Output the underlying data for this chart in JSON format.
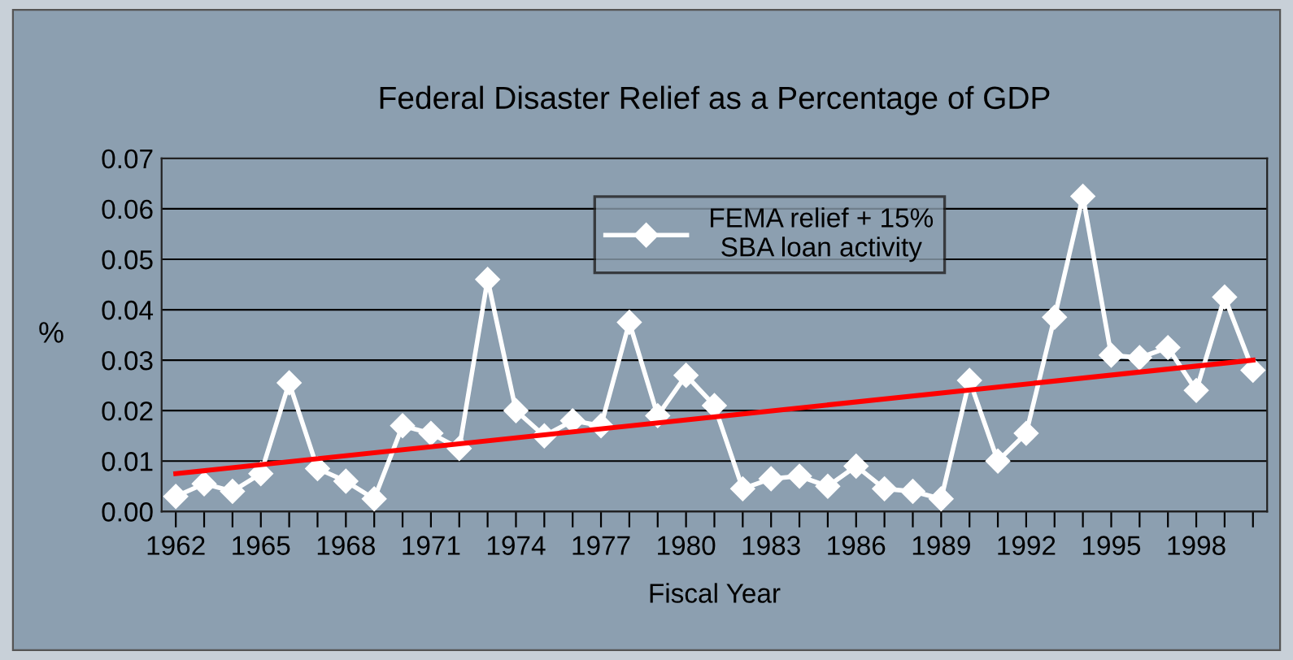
{
  "chart_data": {
    "type": "line",
    "title": "Federal Disaster Relief as a Percentage of GDP",
    "xlabel": "Fiscal Year",
    "ylabel": "%",
    "x": [
      1962,
      1963,
      1964,
      1965,
      1966,
      1967,
      1968,
      1969,
      1970,
      1971,
      1972,
      1973,
      1974,
      1975,
      1976,
      1977,
      1978,
      1979,
      1980,
      1981,
      1982,
      1983,
      1984,
      1985,
      1986,
      1987,
      1988,
      1989,
      1990,
      1991,
      1992,
      1993,
      1994,
      1995,
      1996,
      1997,
      1998,
      1999,
      2000
    ],
    "series": [
      {
        "name": "FEMA relief + 15%\nSBA loan activity",
        "color": "#ffffff",
        "marker": "diamond",
        "values": [
          0.003,
          0.0055,
          0.004,
          0.0075,
          0.0255,
          0.0085,
          0.006,
          0.0025,
          0.017,
          0.0155,
          0.0125,
          0.046,
          0.02,
          0.015,
          0.018,
          0.017,
          0.0375,
          0.019,
          0.027,
          0.021,
          0.0045,
          0.0065,
          0.007,
          0.005,
          0.009,
          0.0045,
          0.004,
          0.0025,
          0.026,
          0.01,
          0.0155,
          0.0385,
          0.0625,
          0.031,
          0.0305,
          0.0325,
          0.024,
          0.0425,
          0.028
        ]
      },
      {
        "type": "line",
        "color": "#ff0000",
        "marker": "none",
        "x": [
          1962,
          2000
        ],
        "values": [
          0.0075,
          0.03
        ]
      }
    ],
    "xlim": [
      1961.5,
      2000.5
    ],
    "xticks": [
      1962,
      {
        "value": 1963,
        "label": null
      },
      {
        "value": 1964,
        "label": null
      },
      1965,
      {
        "value": 1966,
        "label": null
      },
      {
        "value": 1967,
        "label": null
      },
      1968,
      {
        "value": 1969,
        "label": null
      },
      {
        "value": 1970,
        "label": null
      },
      1971,
      {
        "value": 1972,
        "label": null
      },
      {
        "value": 1973,
        "label": null
      },
      1974,
      {
        "value": 1975,
        "label": null
      },
      {
        "value": 1976,
        "label": null
      },
      1977,
      {
        "value": 1978,
        "label": null
      },
      {
        "value": 1979,
        "label": null
      },
      1980,
      {
        "value": 1981,
        "label": null
      },
      {
        "value": 1982,
        "label": null
      },
      1983,
      {
        "value": 1984,
        "label": null
      },
      {
        "value": 1985,
        "label": null
      },
      1986,
      {
        "value": 1987,
        "label": null
      },
      {
        "value": 1988,
        "label": null
      },
      1989,
      {
        "value": 1990,
        "label": null
      },
      {
        "value": 1991,
        "label": null
      },
      1992,
      {
        "value": 1993,
        "label": null
      },
      {
        "value": 1994,
        "label": null
      },
      1995,
      {
        "value": 1996,
        "label": null
      },
      {
        "value": 1997,
        "label": null
      },
      1998,
      {
        "value": 1999,
        "label": null
      },
      {
        "value": 2000,
        "label": null
      }
    ],
    "ylim": [
      0,
      0.07
    ],
    "yticks": [
      {
        "value": 0,
        "label": "0.00"
      },
      {
        "value": 0.01,
        "label": "0.01"
      },
      {
        "value": 0.02,
        "label": "0.02"
      },
      {
        "value": 0.03,
        "label": "0.03"
      },
      {
        "value": 0.04,
        "label": "0.04"
      },
      {
        "value": 0.05,
        "label": "0.05"
      },
      {
        "value": 0.06,
        "label": "0.06"
      },
      {
        "value": 0.07,
        "label": "0.07"
      }
    ],
    "grid": "y",
    "legend": "top",
    "line_style": "solid"
  }
}
